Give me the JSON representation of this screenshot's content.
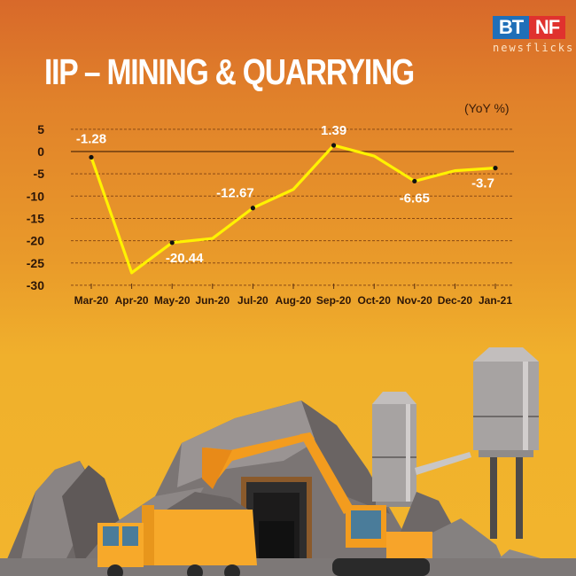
{
  "header": {
    "title": "IIP – MINING & QUARRYING",
    "unit_label": "(YoY %)"
  },
  "logo": {
    "left": "BT",
    "right": "NF",
    "subtitle": "newsflicks",
    "colors": {
      "left": "#1f6fb8",
      "right": "#e0322e"
    }
  },
  "colors": {
    "background_top": "#d8692a",
    "background_bottom": "#f2b52d",
    "line": "#fff200",
    "gridline": "#8a4a14",
    "label": "#ffffff"
  },
  "chart_data": {
    "type": "line",
    "title": "IIP – MINING & QUARRYING",
    "xlabel": "",
    "ylabel": "(YoY %)",
    "ylim": [
      -30,
      5
    ],
    "yticks": [
      5,
      0,
      -5,
      -10,
      -15,
      -20,
      -25,
      -30
    ],
    "grid": true,
    "legend": null,
    "categories": [
      "Mar-20",
      "Apr-20",
      "May-20",
      "Jun-20",
      "Jul-20",
      "Aug-20",
      "Sep-20",
      "Oct-20",
      "Nov-20",
      "Dec-20",
      "Jan-21"
    ],
    "series": [
      {
        "name": "IIP Mining & Quarrying YoY %",
        "values": [
          -1.28,
          -27.2,
          -20.44,
          -19.5,
          -12.67,
          -8.5,
          1.39,
          -1.0,
          -6.65,
          -4.3,
          -3.7
        ]
      }
    ],
    "annotations": [
      {
        "category": "Mar-20",
        "label": "-1.28"
      },
      {
        "category": "May-20",
        "label": "-20.44"
      },
      {
        "category": "Jul-20",
        "label": "-12.67"
      },
      {
        "category": "Sep-20",
        "label": "1.39"
      },
      {
        "category": "Nov-20",
        "label": "-6.65"
      },
      {
        "category": "Jan-21",
        "label": "-3.7"
      }
    ]
  }
}
